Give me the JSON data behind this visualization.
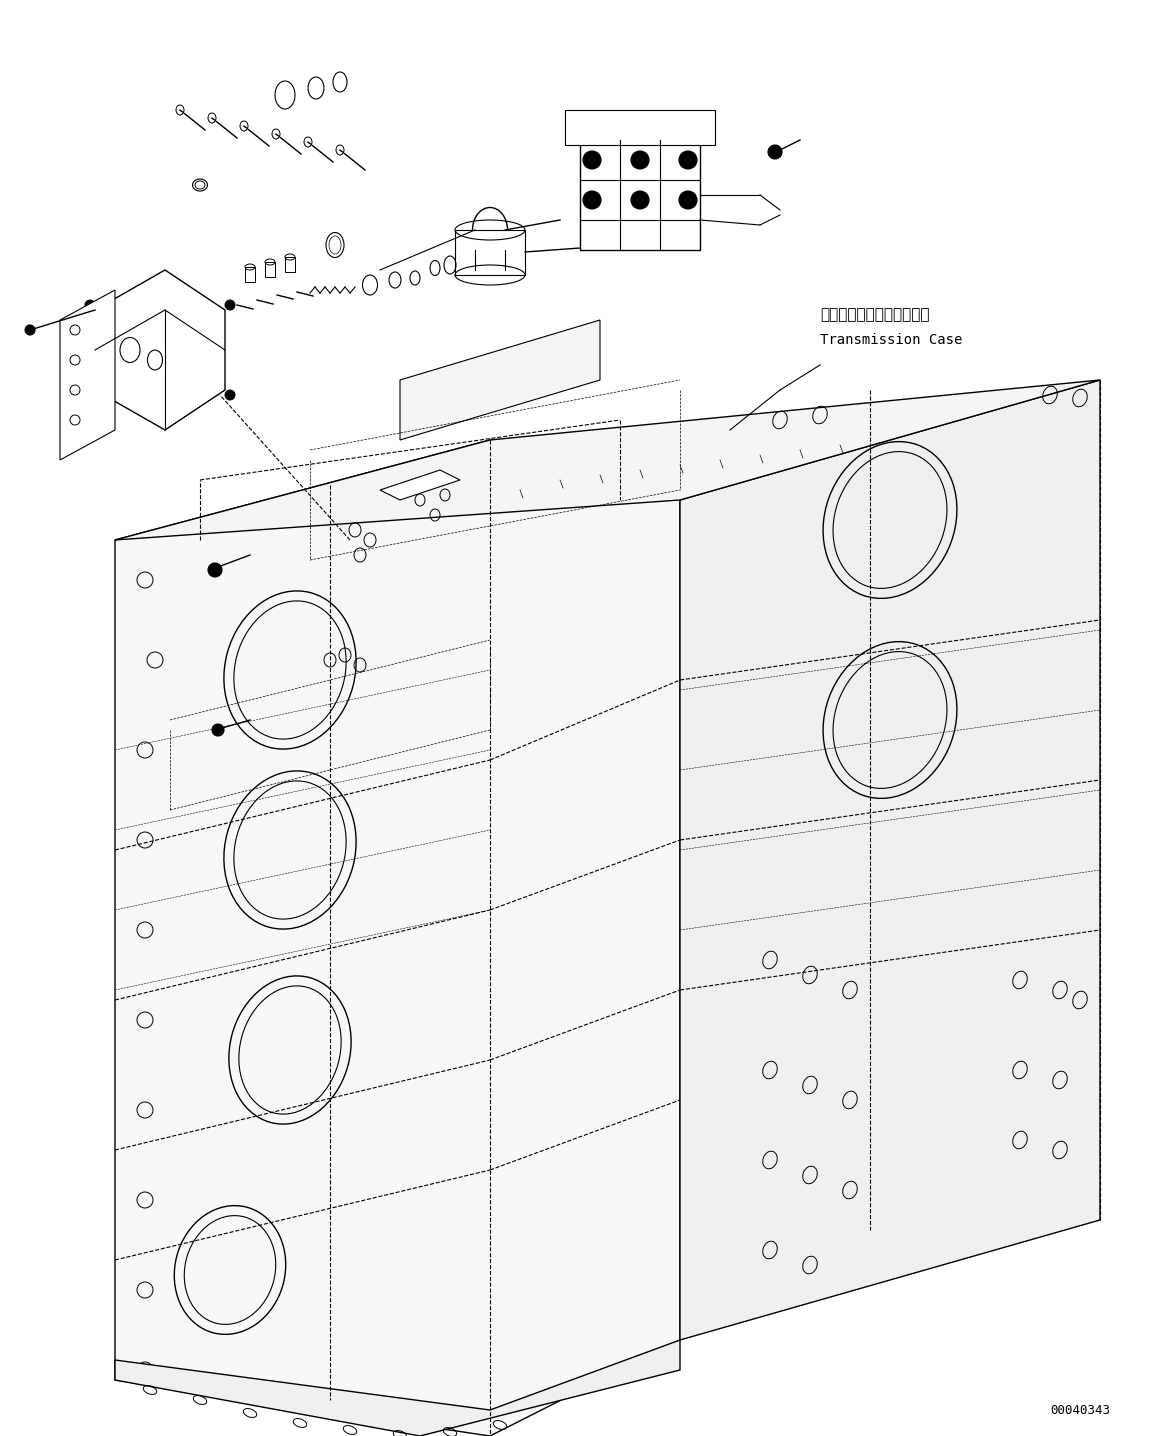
{
  "background_color": "#ffffff",
  "line_color": "#000000",
  "fig_width": 11.63,
  "fig_height": 14.36,
  "dpi": 100,
  "label_transmission_jp": "トランスミッションケース",
  "label_transmission_en": "Transmission Case",
  "part_number": "00040343",
  "font_size_label": 11,
  "font_size_part": 9
}
